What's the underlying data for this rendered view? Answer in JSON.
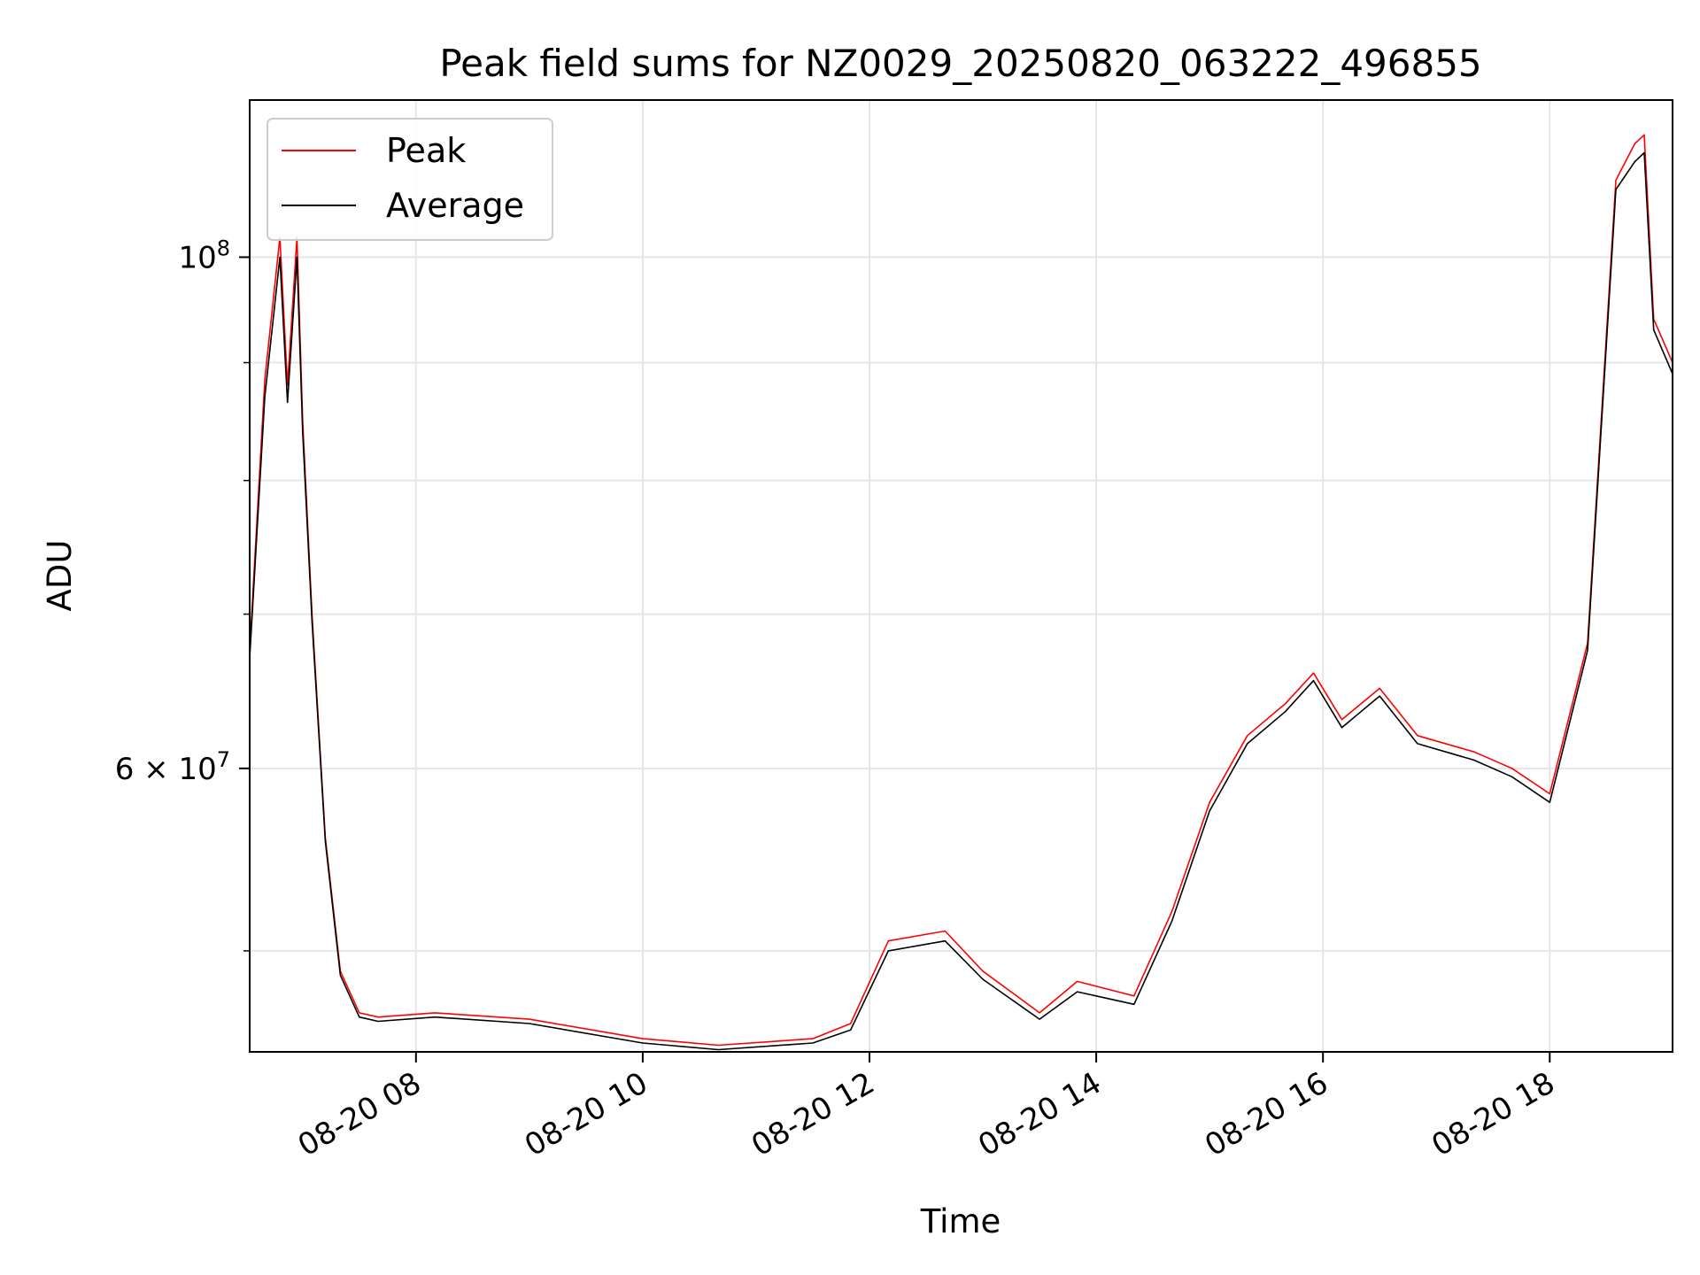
{
  "chart_data": {
    "type": "line",
    "title": "Peak field sums for NZ0029_20250820_063222_496855",
    "xlabel": "Time",
    "ylabel": "ADU",
    "yscale": "log",
    "grid": true,
    "legend_placement": "top-left",
    "xlim": [
      "2025-08-20 06:32",
      "2025-08-20 19:05"
    ],
    "ylim": [
      45200000,
      117000000
    ],
    "x_ticks": [
      {
        "value": "2025-08-20 08:00",
        "label": "08-20 08"
      },
      {
        "value": "2025-08-20 10:00",
        "label": "08-20 10"
      },
      {
        "value": "2025-08-20 12:00",
        "label": "08-20 12"
      },
      {
        "value": "2025-08-20 14:00",
        "label": "08-20 14"
      },
      {
        "value": "2025-08-20 16:00",
        "label": "08-20 16"
      },
      {
        "value": "2025-08-20 18:00",
        "label": "08-20 18"
      }
    ],
    "y_major_ticks": [
      {
        "value": 60000000,
        "base": "6 × 10",
        "exp": "7"
      },
      {
        "value": 100000000,
        "base": "10",
        "exp": "8"
      }
    ],
    "y_minor_ticks": [
      50000000,
      70000000,
      80000000,
      90000000
    ],
    "series": [
      {
        "name": "Peak",
        "color": "#ff0000",
        "x": [
          "2025-08-20 06:32",
          "2025-08-20 06:40",
          "2025-08-20 06:48",
          "2025-08-20 06:52",
          "2025-08-20 06:57",
          "2025-08-20 07:00",
          "2025-08-20 07:05",
          "2025-08-20 07:12",
          "2025-08-20 07:20",
          "2025-08-20 07:30",
          "2025-08-20 07:40",
          "2025-08-20 08:10",
          "2025-08-20 09:00",
          "2025-08-20 10:00",
          "2025-08-20 10:40",
          "2025-08-20 11:30",
          "2025-08-20 11:50",
          "2025-08-20 12:10",
          "2025-08-20 12:40",
          "2025-08-20 13:00",
          "2025-08-20 13:30",
          "2025-08-20 13:50",
          "2025-08-20 14:20",
          "2025-08-20 14:40",
          "2025-08-20 15:00",
          "2025-08-20 15:20",
          "2025-08-20 15:40",
          "2025-08-20 15:55",
          "2025-08-20 16:10",
          "2025-08-20 16:30",
          "2025-08-20 16:50",
          "2025-08-20 17:20",
          "2025-08-20 17:40",
          "2025-08-20 18:00",
          "2025-08-20 18:20",
          "2025-08-20 18:35",
          "2025-08-20 18:45",
          "2025-08-20 18:50",
          "2025-08-20 18:55",
          "2025-08-20 19:05"
        ],
        "values": [
          67500000,
          88500000,
          102000000,
          88000000,
          102000000,
          85000000,
          70000000,
          56000000,
          49000000,
          47000000,
          46800000,
          47000000,
          46700000,
          45800000,
          45500000,
          45800000,
          46500000,
          50500000,
          51000000,
          49000000,
          47000000,
          48500000,
          47800000,
          52000000,
          58000000,
          62000000,
          64000000,
          66000000,
          63000000,
          65000000,
          62000000,
          61000000,
          60000000,
          58500000,
          68000000,
          108000000,
          112000000,
          113000000,
          94000000,
          90000000
        ]
      },
      {
        "name": "Average",
        "color": "#000000",
        "x": [
          "2025-08-20 06:32",
          "2025-08-20 06:40",
          "2025-08-20 06:48",
          "2025-08-20 06:52",
          "2025-08-20 06:57",
          "2025-08-20 07:00",
          "2025-08-20 07:05",
          "2025-08-20 07:12",
          "2025-08-20 07:20",
          "2025-08-20 07:30",
          "2025-08-20 07:40",
          "2025-08-20 08:10",
          "2025-08-20 09:00",
          "2025-08-20 10:00",
          "2025-08-20 10:40",
          "2025-08-20 11:30",
          "2025-08-20 11:50",
          "2025-08-20 12:10",
          "2025-08-20 12:40",
          "2025-08-20 13:00",
          "2025-08-20 13:30",
          "2025-08-20 13:50",
          "2025-08-20 14:20",
          "2025-08-20 14:40",
          "2025-08-20 15:00",
          "2025-08-20 15:20",
          "2025-08-20 15:40",
          "2025-08-20 15:55",
          "2025-08-20 16:10",
          "2025-08-20 16:30",
          "2025-08-20 16:50",
          "2025-08-20 17:20",
          "2025-08-20 17:40",
          "2025-08-20 18:00",
          "2025-08-20 18:20",
          "2025-08-20 18:35",
          "2025-08-20 18:45",
          "2025-08-20 18:50",
          "2025-08-20 18:55",
          "2025-08-20 19:05"
        ],
        "values": [
          67000000,
          87000000,
          100000000,
          86500000,
          100000000,
          84000000,
          69500000,
          55800000,
          48800000,
          46800000,
          46600000,
          46800000,
          46500000,
          45600000,
          45300000,
          45600000,
          46200000,
          50000000,
          50500000,
          48600000,
          46700000,
          48000000,
          47400000,
          51500000,
          57500000,
          61500000,
          63500000,
          65500000,
          62500000,
          64500000,
          61500000,
          60500000,
          59500000,
          58000000,
          67500000,
          107000000,
          110000000,
          111000000,
          93000000,
          89000000
        ]
      }
    ]
  }
}
